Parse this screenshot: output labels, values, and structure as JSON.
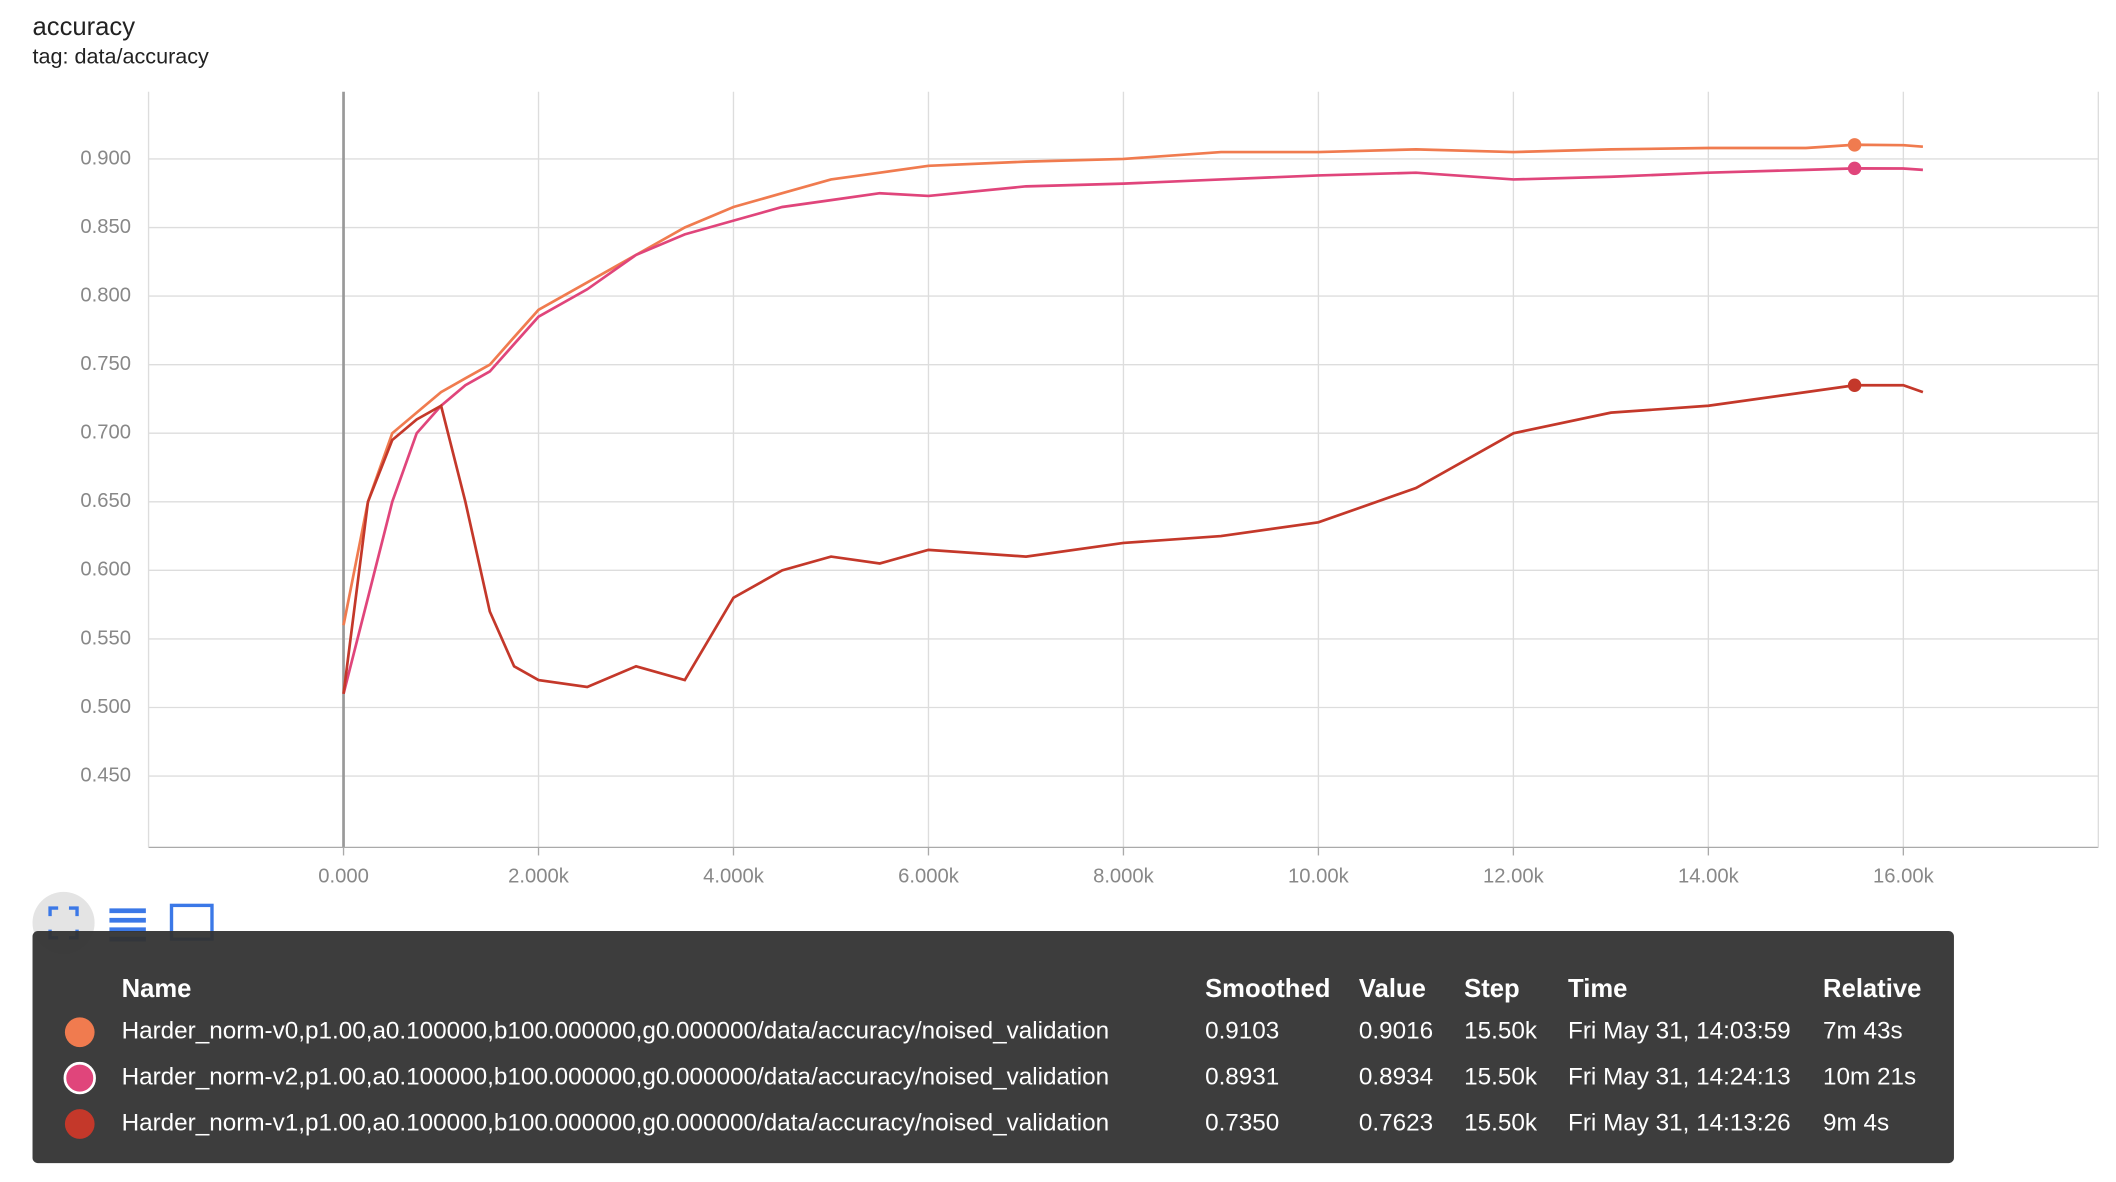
{
  "chart_data": {
    "type": "line",
    "title": "accuracy",
    "subtitle": "tag: data/accuracy",
    "x": [
      0,
      250,
      500,
      750,
      1000,
      1250,
      1500,
      1750,
      2000,
      2500,
      3000,
      3500,
      4000,
      4500,
      5000,
      5500,
      6000,
      7000,
      8000,
      9000,
      10000,
      11000,
      12000,
      13000,
      14000,
      15000,
      15500,
      16000,
      16200
    ],
    "series": [
      {
        "name": "Harder_norm-v0,p1.00,a0.100000,b100.000000,g0.000000/data/accuracy/noised_validation",
        "color": "#f07b4f",
        "values": [
          0.56,
          0.65,
          0.7,
          0.715,
          0.73,
          0.74,
          0.75,
          0.77,
          0.79,
          0.81,
          0.83,
          0.85,
          0.865,
          0.875,
          0.885,
          0.89,
          0.895,
          0.898,
          0.9,
          0.905,
          0.905,
          0.907,
          0.905,
          0.907,
          0.908,
          0.908,
          0.9103,
          0.91,
          0.909
        ]
      },
      {
        "name": "Harder_norm-v2,p1.00,a0.100000,b100.000000,g0.000000/data/accuracy/noised_validation",
        "color": "#e0457b",
        "values": [
          0.51,
          0.58,
          0.65,
          0.7,
          0.72,
          0.735,
          0.745,
          0.765,
          0.785,
          0.805,
          0.83,
          0.845,
          0.855,
          0.865,
          0.87,
          0.875,
          0.873,
          0.88,
          0.882,
          0.885,
          0.888,
          0.89,
          0.885,
          0.887,
          0.89,
          0.892,
          0.8931,
          0.893,
          0.892
        ]
      },
      {
        "name": "Harder_norm-v1,p1.00,a0.100000,b100.000000,g0.000000/data/accuracy/noised_validation",
        "color": "#c4382a",
        "values": [
          0.51,
          0.65,
          0.695,
          0.71,
          0.72,
          0.65,
          0.57,
          0.53,
          0.52,
          0.515,
          0.53,
          0.52,
          0.58,
          0.6,
          0.61,
          0.605,
          0.615,
          0.61,
          0.62,
          0.625,
          0.635,
          0.66,
          0.7,
          0.715,
          0.72,
          0.73,
          0.735,
          0.735,
          0.73
        ]
      }
    ],
    "xlim": [
      -2000,
      18000
    ],
    "xticks": [
      {
        "value": 0,
        "label": "0.000"
      },
      {
        "value": 2000,
        "label": "2.000k"
      },
      {
        "value": 4000,
        "label": "4.000k"
      },
      {
        "value": 6000,
        "label": "6.000k"
      },
      {
        "value": 8000,
        "label": "8.000k"
      },
      {
        "value": 10000,
        "label": "10.00k"
      },
      {
        "value": 12000,
        "label": "12.00k"
      },
      {
        "value": 14000,
        "label": "14.00k"
      },
      {
        "value": 16000,
        "label": "16.00k"
      }
    ],
    "ylim": [
      0.398,
      0.949
    ],
    "yticks": [
      {
        "value": 0.45,
        "label": "0.450"
      },
      {
        "value": 0.5,
        "label": "0.500"
      },
      {
        "value": 0.55,
        "label": "0.550"
      },
      {
        "value": 0.6,
        "label": "0.600"
      },
      {
        "value": 0.65,
        "label": "0.650"
      },
      {
        "value": 0.7,
        "label": "0.700"
      },
      {
        "value": 0.75,
        "label": "0.750"
      },
      {
        "value": 0.8,
        "label": "0.800"
      },
      {
        "value": 0.85,
        "label": "0.850"
      },
      {
        "value": 0.9,
        "label": "0.900"
      }
    ],
    "grid": true,
    "highlight_index": 26,
    "tooltip": {
      "header": [
        "Name",
        "Smoothed",
        "Value",
        "Step",
        "Time",
        "Relative"
      ],
      "rows": [
        [
          "Harder_norm-v0,p1.00,a0.100000,b100.000000,g0.000000/data/accuracy/noised_validation",
          "0.9103",
          "0.9016",
          "15.50k",
          "Fri May 31, 14:03:59",
          "7m 43s"
        ],
        [
          "Harder_norm-v2,p1.00,a0.100000,b100.000000,g0.000000/data/accuracy/noised_validation",
          "0.8931",
          "0.8934",
          "15.50k",
          "Fri May 31, 14:24:13",
          "10m 21s"
        ],
        [
          "Harder_norm-v1,p1.00,a0.100000,b100.000000,g0.000000/data/accuracy/noised_validation",
          "0.7350",
          "0.7623",
          "15.50k",
          "Fri May 31, 14:13:26",
          "9m 4s"
        ]
      ]
    }
  }
}
